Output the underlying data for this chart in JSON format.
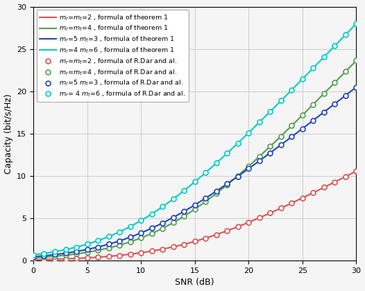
{
  "title": "",
  "xlabel": "SNR (dB)",
  "ylabel": "Capacity (bit/s/Hz)",
  "xlim": [
    0,
    30
  ],
  "ylim": [
    0,
    30
  ],
  "xticks": [
    0,
    5,
    10,
    15,
    20,
    25,
    30
  ],
  "yticks": [
    0,
    5,
    10,
    15,
    20,
    25,
    30
  ],
  "m": 32,
  "series": [
    {
      "mr": 2,
      "mt": 2,
      "color": "#e05050",
      "label_line": "m_r=m_t=2 , formula of theorem 1",
      "label_marker": "m_r=m_t=2 , formula of R.Dar and al.",
      "gain": 3.8e-05
    },
    {
      "mr": 4,
      "mt": 4,
      "color": "#50a050",
      "label_line": "m_r=m_t=4 , formula of theorem 1",
      "label_marker": "m_r=m_t=4 , formula of R.Dar and al.",
      "gain": 5.9e-05
    },
    {
      "mr": 5,
      "mt": 3,
      "color": "#2244bb",
      "label_line": "m_r=5 m_t=3 , formula of theorem 1",
      "label_marker": "m_r=5 m_t=3 , formula of R.Dar and al.",
      "gain": 0.000113
    },
    {
      "mr": 4,
      "mt": 6,
      "color": "#00cccc",
      "label_line": "m_r=4 m_t=6 , formula of theorem 1",
      "label_marker": "m_r= 4 m_t=6 , formula of R.Dar and al.",
      "gain": 0.000127
    }
  ],
  "background_color": "#f5f5f5",
  "grid_color": "#cccccc",
  "marker_size": 5,
  "linewidth": 1.5
}
